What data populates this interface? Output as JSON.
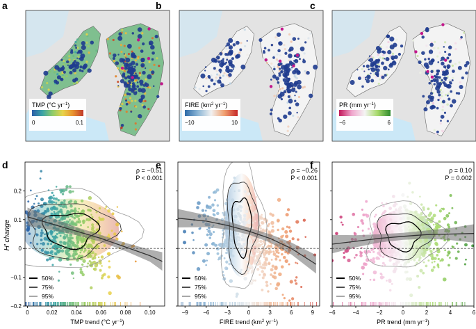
{
  "panels": {
    "a": {
      "label": "a",
      "legend_title_pre": "TMP (°C yr",
      "legend_sup": "−1",
      "legend_title_post": ")",
      "legend_min": "0",
      "legend_max": "0.1"
    },
    "b": {
      "label": "b",
      "legend_title_pre": "FIRE (km",
      "legend_sup": "2",
      "legend_mid": " yr",
      "legend_sup2": "−1",
      "legend_title_post": ")",
      "legend_min": "−10",
      "legend_max": "10"
    },
    "c": {
      "label": "c",
      "legend_title_pre": "PR (mm yr",
      "legend_sup": "−1",
      "legend_title_post": ")",
      "legend_min": "−6",
      "legend_max": "6"
    }
  },
  "colors": {
    "tmp": [
      "#2b5da8",
      "#3aa3a7",
      "#8fcc6a",
      "#e8d34a",
      "#e8912f",
      "#c0392b"
    ],
    "fire": [
      "#2c6aa8",
      "#8cb6d6",
      "#f1f1f1",
      "#f0a070",
      "#c62828"
    ],
    "pr": [
      "#c2185b",
      "#f0a8cf",
      "#f4f4f4",
      "#a6d96a",
      "#2e8b2e"
    ],
    "dots": "#1f3c8f",
    "land": "#9ecaa4",
    "ocean": "#cbe8f7"
  },
  "chart_data": [
    {
      "panel": "d",
      "type": "scatter",
      "xlabel_pre": "TMP trend (°C yr",
      "xlabel_sup": "−1",
      "xlabel_post": ")",
      "ylabel": "H′ change",
      "xlim": [
        -0.002,
        0.112
      ],
      "ylim": [
        -0.2,
        0.3
      ],
      "xticks": [
        "0",
        "0.02",
        "0.04",
        "0.06",
        "0.08",
        "0.10"
      ],
      "xtick_values": [
        0,
        0.02,
        0.04,
        0.06,
        0.08,
        0.1
      ],
      "yticks": [
        "−0.2",
        "−0.1",
        "0",
        "0.1",
        "0.2"
      ],
      "ytick_values": [
        -0.2,
        -0.1,
        0,
        0.1,
        0.2
      ],
      "stat_rho": "ρ = −0.51",
      "stat_p": "P < 0.001",
      "trend": {
        "x": [
          0,
          0.02,
          0.04,
          0.06,
          0.08,
          0.1,
          0.11
        ],
        "y": [
          0.11,
          0.085,
          0.06,
          0.035,
          0.005,
          -0.025,
          -0.045
        ]
      },
      "contours": [
        "50%",
        "75%",
        "95%"
      ]
    },
    {
      "panel": "e",
      "type": "scatter",
      "xlabel_pre": "FIRE trend (km",
      "xlabel_sup": "2",
      "xlabel_mid": " yr",
      "xlabel_sup2": "−1",
      "xlabel_post": ")",
      "xlim": [
        -10,
        10
      ],
      "ylim": [
        -0.2,
        0.3
      ],
      "xticks": [
        "−9",
        "−6",
        "−3",
        "0",
        "3",
        "6",
        "9"
      ],
      "xtick_values": [
        -9,
        -6,
        -3,
        0,
        3,
        6,
        9
      ],
      "stat_rho": "ρ = −0.26",
      "stat_p": "P < 0.001",
      "trend": {
        "x": [
          -10,
          -6,
          -3,
          0,
          3,
          6,
          9.5
        ],
        "y": [
          0.105,
          0.095,
          0.08,
          0.06,
          0.035,
          0.0,
          -0.055
        ]
      },
      "contours": [
        "50%",
        "75%",
        "95%"
      ]
    },
    {
      "panel": "f",
      "type": "scatter",
      "xlabel_pre": "PR trend (mm yr",
      "xlabel_sup": "−1",
      "xlabel_post": ")",
      "xlim": [
        -6,
        6
      ],
      "ylim": [
        -0.2,
        0.3
      ],
      "xticks": [
        "−6",
        "−4",
        "−2",
        "0",
        "2",
        "4",
        "6"
      ],
      "xtick_values": [
        -6,
        -4,
        -2,
        0,
        2,
        4,
        6
      ],
      "stat_rho": "ρ = 0.10",
      "stat_p": "P = 0.002",
      "trend": {
        "x": [
          -6,
          -4,
          -2,
          0,
          2,
          4,
          6
        ],
        "y": [
          0.015,
          0.025,
          0.035,
          0.042,
          0.048,
          0.05,
          0.052
        ]
      },
      "contours": [
        "50%",
        "75%",
        "95%"
      ]
    }
  ]
}
